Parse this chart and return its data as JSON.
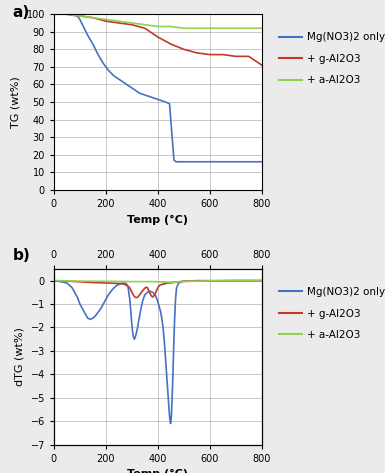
{
  "fig_bg": "#ebebeb",
  "panel_bg": "#ffffff",
  "xlim": [
    0,
    800
  ],
  "xticks": [
    0,
    200,
    400,
    600,
    800
  ],
  "panel_a": {
    "label": "a)",
    "ylabel": "TG (wt%)",
    "xlabel": "Temp (°C)",
    "ylim": [
      0,
      100
    ],
    "yticks": [
      0,
      10,
      20,
      30,
      40,
      50,
      60,
      70,
      80,
      90,
      100
    ],
    "blue_x": [
      0,
      50,
      90,
      100,
      130,
      150,
      170,
      190,
      210,
      230,
      250,
      270,
      290,
      310,
      330,
      350,
      370,
      390,
      410,
      430,
      445,
      455,
      462,
      470,
      480,
      500,
      550,
      600,
      650,
      700,
      750,
      800
    ],
    "blue_y": [
      100,
      100,
      99,
      97,
      88,
      83,
      77,
      72,
      68,
      65,
      63,
      61,
      59,
      57,
      55,
      54,
      53,
      52,
      51,
      50,
      49,
      30,
      17,
      16,
      16,
      16,
      16,
      16,
      16,
      16,
      16,
      16
    ],
    "red_x": [
      0,
      50,
      100,
      150,
      200,
      250,
      300,
      350,
      400,
      450,
      500,
      550,
      600,
      650,
      700,
      750,
      800
    ],
    "red_y": [
      100,
      100,
      99,
      98,
      96,
      95,
      94,
      92,
      87,
      83,
      80,
      78,
      77,
      77,
      76,
      76,
      71
    ],
    "green_x": [
      0,
      50,
      100,
      150,
      200,
      250,
      300,
      350,
      400,
      450,
      500,
      550,
      600,
      650,
      700,
      750,
      800
    ],
    "green_y": [
      100,
      100,
      99,
      98,
      97,
      96,
      95,
      94,
      93,
      93,
      92,
      92,
      92,
      92,
      92,
      92,
      92
    ],
    "blue_color": "#4472c4",
    "red_color": "#c0392b",
    "green_color": "#92d050",
    "legend_labels": [
      "Mg(NO3)2 only",
      "+ g-Al2O3",
      "+ a-Al2O3"
    ]
  },
  "panel_b": {
    "label": "b)",
    "ylabel": "dTG (wt%)",
    "xlabel": "Temp (°C)",
    "ylim": [
      -7,
      0.5
    ],
    "yticks": [
      0,
      -1,
      -2,
      -3,
      -4,
      -5,
      -6,
      -7
    ],
    "blue_x": [
      0,
      30,
      50,
      70,
      90,
      100,
      110,
      120,
      130,
      140,
      150,
      160,
      170,
      180,
      190,
      200,
      210,
      220,
      230,
      240,
      250,
      265,
      278,
      285,
      292,
      296,
      300,
      303,
      306,
      310,
      316,
      322,
      328,
      335,
      342,
      350,
      360,
      370,
      380,
      390,
      395,
      400,
      405,
      410,
      415,
      420,
      425,
      430,
      435,
      440,
      443,
      446,
      449,
      452,
      455,
      458,
      461,
      464,
      468,
      472,
      480,
      490,
      500,
      550,
      600,
      700,
      800
    ],
    "blue_y": [
      0,
      -0.05,
      -0.1,
      -0.3,
      -0.7,
      -1.0,
      -1.2,
      -1.4,
      -1.6,
      -1.65,
      -1.6,
      -1.5,
      -1.35,
      -1.2,
      -1.0,
      -0.8,
      -0.6,
      -0.45,
      -0.32,
      -0.22,
      -0.15,
      -0.1,
      -0.12,
      -0.25,
      -0.8,
      -1.3,
      -1.9,
      -2.2,
      -2.4,
      -2.5,
      -2.3,
      -2.0,
      -1.6,
      -1.2,
      -0.85,
      -0.6,
      -0.5,
      -0.45,
      -0.5,
      -0.6,
      -0.75,
      -0.9,
      -1.1,
      -1.3,
      -1.6,
      -2.0,
      -2.6,
      -3.4,
      -4.2,
      -5.0,
      -5.5,
      -5.9,
      -6.1,
      -5.8,
      -5.0,
      -4.0,
      -2.8,
      -1.8,
      -0.8,
      -0.3,
      -0.1,
      -0.05,
      -0.02,
      0,
      0,
      0,
      0
    ],
    "red_x": [
      0,
      50,
      100,
      150,
      200,
      250,
      270,
      280,
      290,
      295,
      300,
      305,
      310,
      315,
      320,
      325,
      330,
      340,
      350,
      355,
      360,
      365,
      370,
      375,
      380,
      385,
      390,
      395,
      400,
      405,
      410,
      420,
      430,
      440,
      450,
      460,
      470,
      480,
      500,
      550,
      600,
      700,
      800
    ],
    "red_y": [
      0,
      -0.02,
      -0.05,
      -0.08,
      -0.1,
      -0.12,
      -0.15,
      -0.2,
      -0.28,
      -0.38,
      -0.5,
      -0.6,
      -0.68,
      -0.72,
      -0.72,
      -0.68,
      -0.6,
      -0.45,
      -0.32,
      -0.28,
      -0.3,
      -0.42,
      -0.55,
      -0.65,
      -0.7,
      -0.65,
      -0.55,
      -0.42,
      -0.3,
      -0.22,
      -0.18,
      -0.15,
      -0.12,
      -0.1,
      -0.1,
      -0.08,
      -0.06,
      -0.05,
      -0.03,
      -0.02,
      -0.01,
      0,
      0
    ],
    "green_x": [
      0,
      50,
      100,
      200,
      300,
      380,
      400,
      420,
      440,
      450,
      460,
      470,
      480,
      490,
      500,
      550,
      600,
      700,
      800
    ],
    "green_y": [
      0,
      -0.01,
      -0.02,
      -0.03,
      -0.04,
      -0.04,
      -0.05,
      -0.06,
      -0.07,
      -0.08,
      -0.07,
      -0.06,
      -0.05,
      -0.04,
      -0.03,
      -0.02,
      -0.01,
      0,
      0
    ],
    "blue_color": "#4472c4",
    "red_color": "#c0392b",
    "green_color": "#92d050",
    "legend_labels": [
      "Mg(NO3)2 only",
      "+ g-Al2O3",
      "+ a-Al2O3"
    ]
  }
}
